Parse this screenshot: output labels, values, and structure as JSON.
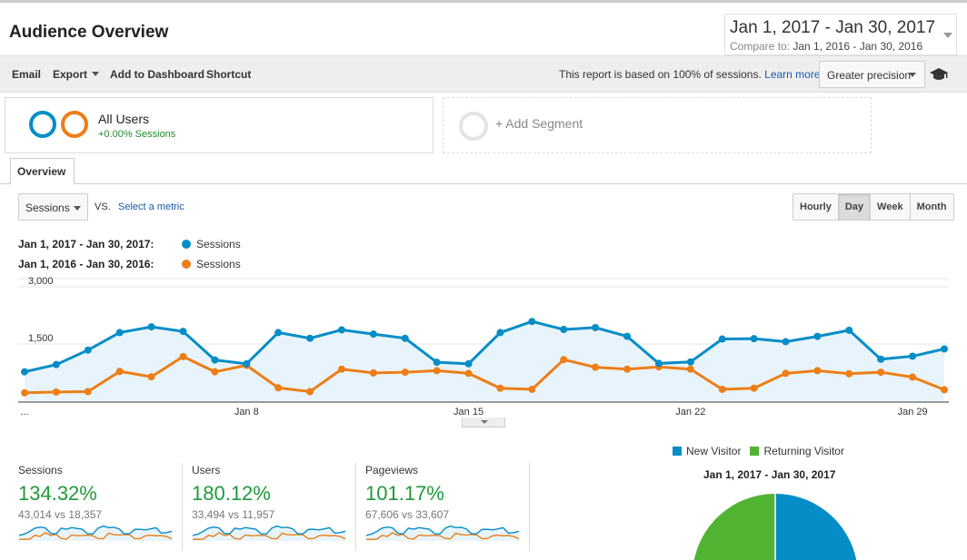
{
  "header": {
    "title": "Audience Overview",
    "date_range": "Jan 1, 2017 - Jan 30, 2017",
    "compare_prefix": "Compare to:",
    "compare_range": "Jan 1, 2016 - Jan 30, 2016"
  },
  "toolbar": {
    "email": "Email",
    "export": "Export",
    "add_to_dashboard": "Add to Dashboard",
    "shortcut": "Shortcut",
    "report_note": "This report is based on 100% of sessions.",
    "learn_more": "Learn more",
    "precision": "Greater precision"
  },
  "segments": {
    "all_users": {
      "name": "All Users",
      "sub": "+0.00% Sessions"
    },
    "add_segment": "+ Add Segment"
  },
  "tabs": {
    "overview": "Overview"
  },
  "controls": {
    "metric": "Sessions",
    "vs": "VS.",
    "select_metric": "Select a metric",
    "granularity": [
      "Hourly",
      "Day",
      "Week",
      "Month"
    ],
    "active_granularity": "Day"
  },
  "legend": [
    {
      "range": "Jan 1, 2017 - Jan 30, 2017:",
      "series": "Sessions",
      "color": "#058dc7"
    },
    {
      "range": "Jan 1, 2016 - Jan 30, 2016:",
      "series": "Sessions",
      "color": "#ed7e17"
    }
  ],
  "chart_data": {
    "type": "line",
    "x": [
      1,
      2,
      3,
      4,
      5,
      6,
      7,
      8,
      9,
      10,
      11,
      12,
      13,
      14,
      15,
      16,
      17,
      18,
      19,
      20,
      21,
      22,
      23,
      24,
      25,
      26,
      27,
      28,
      29,
      30
    ],
    "x_tick_labels": [
      "...",
      "Jan 8",
      "Jan 15",
      "Jan 22",
      "Jan 29"
    ],
    "y_tick_labels": [
      "3,000",
      "1,500"
    ],
    "ylim": [
      0,
      3000
    ],
    "grid": true,
    "series": [
      {
        "name": "Sessions",
        "period": "Jan 1, 2017 - Jan 30, 2017",
        "color": "#058dc7",
        "values": [
          770,
          960,
          1340,
          1800,
          1950,
          1830,
          1080,
          980,
          1800,
          1650,
          1870,
          1760,
          1650,
          1020,
          980,
          1800,
          2090,
          1880,
          1930,
          1700,
          990,
          1030,
          1630,
          1640,
          1560,
          1700,
          1860,
          1100,
          1180,
          1370
        ]
      },
      {
        "name": "Sessions",
        "period": "Jan 1, 2016 - Jan 30, 2016",
        "color": "#ed7e17",
        "values": [
          220,
          240,
          250,
          780,
          640,
          1170,
          770,
          940,
          350,
          250,
          840,
          740,
          760,
          800,
          730,
          340,
          310,
          1090,
          890,
          840,
          900,
          840,
          310,
          340,
          730,
          800,
          720,
          760,
          630,
          300
        ]
      }
    ]
  },
  "scorecards": [
    {
      "label": "Sessions",
      "value": "134.32%",
      "sub": "43,014 vs 18,357"
    },
    {
      "label": "Users",
      "value": "180.12%",
      "sub": "33,494 vs 11,957"
    },
    {
      "label": "Pageviews",
      "value": "101.17%",
      "sub": "67,606 vs 33,607"
    }
  ],
  "pie": {
    "legend": [
      {
        "label": "New Visitor",
        "color": "#058dc7"
      },
      {
        "label": "Returning Visitor",
        "color": "#50b432"
      }
    ],
    "title": "Jan 1, 2017 - Jan 30, 2017"
  },
  "colors": {
    "current": "#058dc7",
    "previous": "#ed7e17",
    "positive": "#1f9a3a",
    "link": "#1a5aaa"
  }
}
